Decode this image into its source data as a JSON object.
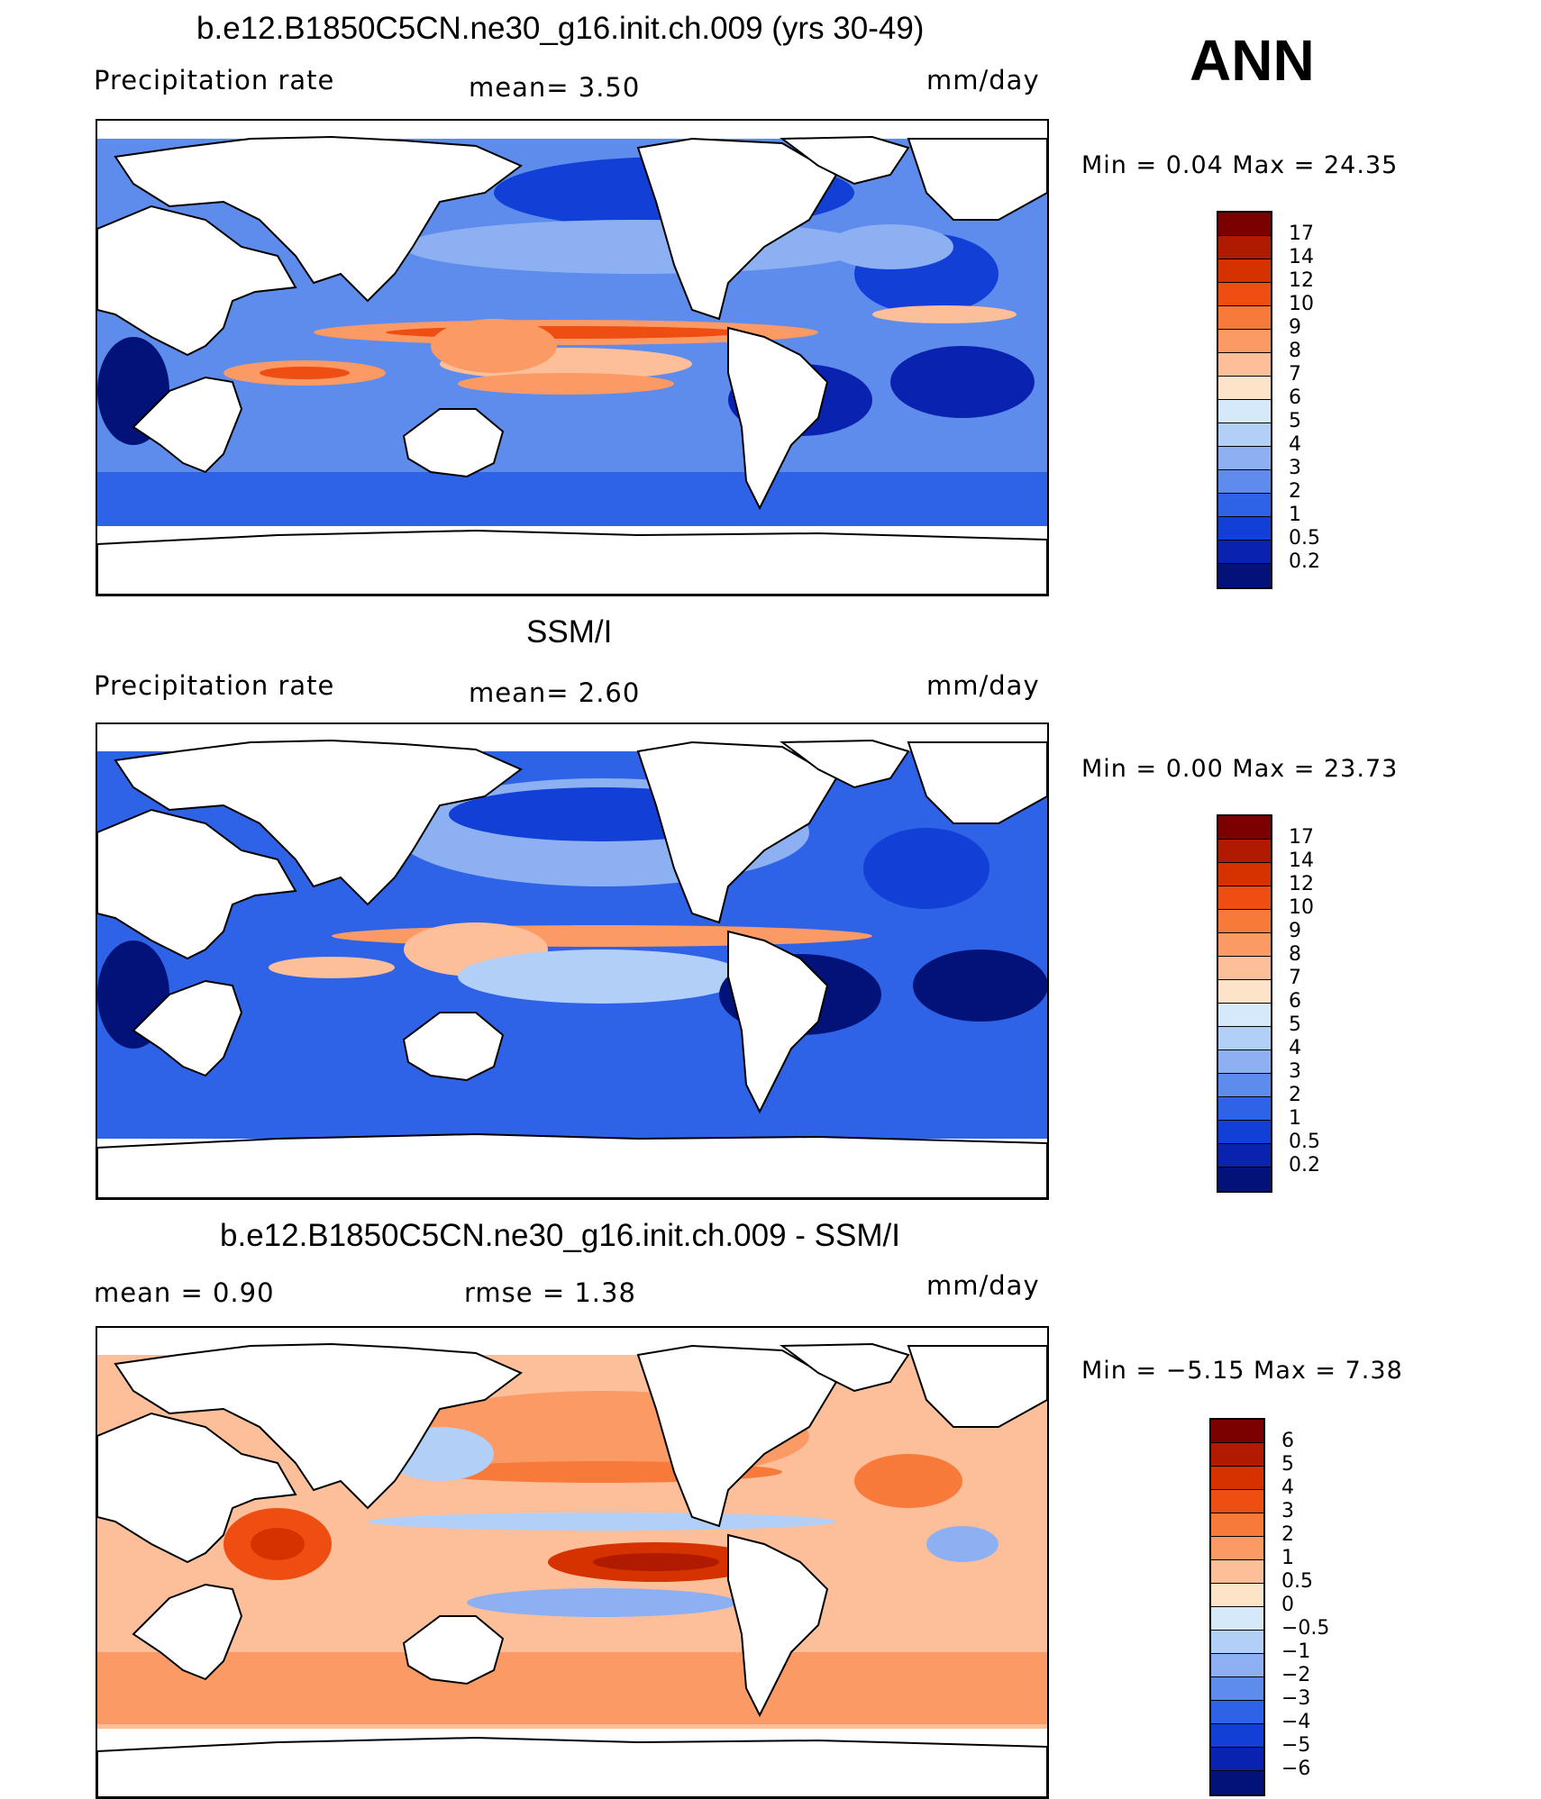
{
  "season": "ANN",
  "panels": [
    {
      "title": "b.e12.B1850C5CN.ne30_g16.init.ch.009 (yrs 30-49)",
      "left_label": "Precipitation  rate",
      "mid_label": "mean=    3.50",
      "right_label": "mm/day",
      "minmax": "Min  =    0.04  Max  =   24.35",
      "colorbar_labels": [
        "17",
        "14",
        "12",
        "10",
        "9",
        "8",
        "7",
        "6",
        "5",
        "4",
        "3",
        "2",
        "1",
        "0.5",
        "0.2"
      ],
      "colors": [
        "#7b0000",
        "#b01a00",
        "#d53200",
        "#ef4e12",
        "#f77a3a",
        "#fb9a64",
        "#fdbf9a",
        "#fde3c8",
        "#d6e9fb",
        "#b2cff7",
        "#8cb0f2",
        "#5d8ced",
        "#2f63e7",
        "#123fd6",
        "#0a22b0",
        "#031278"
      ]
    },
    {
      "title": "SSM/I",
      "left_label": "Precipitation  rate",
      "mid_label": "mean=    2.60",
      "right_label": "mm/day",
      "minmax": "Min  =    0.00  Max  =   23.73",
      "colorbar_labels": [
        "17",
        "14",
        "12",
        "10",
        "9",
        "8",
        "7",
        "6",
        "5",
        "4",
        "3",
        "2",
        "1",
        "0.5",
        "0.2"
      ],
      "colors": [
        "#7b0000",
        "#b01a00",
        "#d53200",
        "#ef4e12",
        "#f77a3a",
        "#fb9a64",
        "#fdbf9a",
        "#fde3c8",
        "#d6e9fb",
        "#b2cff7",
        "#8cb0f2",
        "#5d8ced",
        "#2f63e7",
        "#123fd6",
        "#0a22b0",
        "#031278"
      ]
    },
    {
      "title": "b.e12.B1850C5CN.ne30_g16.init.ch.009 - SSM/I",
      "left_label": "mean  =    0.90",
      "mid_label": "rmse  =    1.38",
      "right_label": "mm/day",
      "minmax": "Min  =  −5.15  Max  =     7.38",
      "colorbar_labels": [
        "6",
        "5",
        "4",
        "3",
        "2",
        "1",
        "0.5",
        "0",
        "−0.5",
        "−1",
        "−2",
        "−3",
        "−4",
        "−5",
        "−6"
      ],
      "colors": [
        "#7b0000",
        "#b01a00",
        "#d53200",
        "#ef4e12",
        "#f77a3a",
        "#fb9a64",
        "#fdbf9a",
        "#fde3c8",
        "#d6e9fb",
        "#b2cff7",
        "#8cb0f2",
        "#5d8ced",
        "#2f63e7",
        "#123fd6",
        "#0a22b0",
        "#031278"
      ]
    }
  ]
}
